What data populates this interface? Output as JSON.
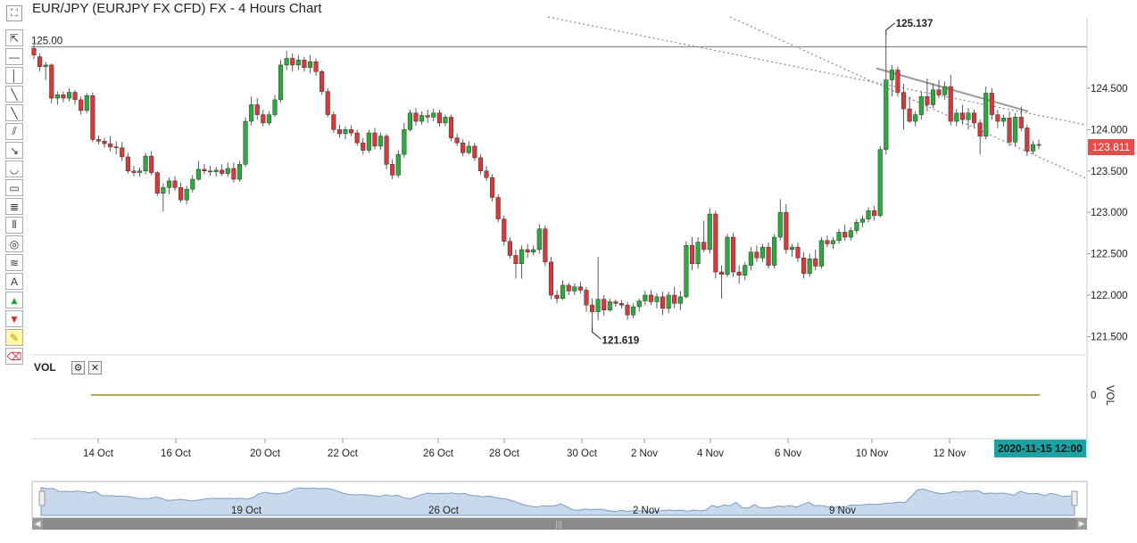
{
  "window": {
    "title": "EUR/JPY (EURJPY FX CFD) FX - 4 Hours Chart"
  },
  "toolbar": {
    "fullscreen_glyph": "⛶",
    "tools": [
      {
        "name": "cursor-tool",
        "glyph": "⇱"
      },
      {
        "name": "horizontal-line-tool",
        "glyph": "—"
      },
      {
        "name": "vertical-line-tool",
        "glyph": "│"
      },
      {
        "name": "trendline-tool",
        "glyph": "╲"
      },
      {
        "name": "ray-tool",
        "glyph": "╲"
      },
      {
        "name": "parallel-channel-tool",
        "glyph": "⫽"
      },
      {
        "name": "arrow-line-tool",
        "glyph": "↘"
      },
      {
        "name": "arc-tool",
        "glyph": "◡"
      },
      {
        "name": "rectangle-tool",
        "glyph": "▭"
      },
      {
        "name": "fibonacci-fan-tool",
        "glyph": "≣"
      },
      {
        "name": "fibonacci-time-tool",
        "glyph": "⦀"
      },
      {
        "name": "fibonacci-circles-tool",
        "glyph": "◎"
      },
      {
        "name": "fibonacci-arcs-tool",
        "glyph": "≋"
      },
      {
        "name": "text-annotation-tool",
        "glyph": "A"
      },
      {
        "name": "up-arrow-marker-tool",
        "glyph": "▲"
      },
      {
        "name": "down-arrow-marker-tool",
        "glyph": "▼"
      },
      {
        "name": "highlighter-tool",
        "glyph": "✎"
      },
      {
        "name": "eraser-tool",
        "glyph": "⌫"
      }
    ]
  },
  "indicator": {
    "label": "VOL",
    "gear_glyph": "⚙",
    "close_glyph": "✕",
    "axis_label": "VOL",
    "axis_zero": "0"
  },
  "price_axis": {
    "ticks": [
      "124.500",
      "124.000",
      "123.500",
      "123.000",
      "122.500",
      "122.000",
      "121.500"
    ],
    "last_price": "123.811",
    "reference_line_label": "125.00"
  },
  "annotations": {
    "high": "125.137",
    "low": "121.619"
  },
  "time_axis": {
    "labels": [
      "14 Oct",
      "16 Oct",
      "20 Oct",
      "22 Oct",
      "26 Oct",
      "28 Oct",
      "30 Oct",
      "2 Nov",
      "4 Nov",
      "6 Nov",
      "10 Nov",
      "12 Nov"
    ],
    "cursor_date": "2020-11-15 12:00"
  },
  "navigator": {
    "labels": [
      "19 Oct",
      "26 Oct",
      "2 Nov",
      "9 Nov"
    ]
  },
  "colors": {
    "up": "#2eaa3c",
    "down": "#d63a3a",
    "last_price_bg": "#e74c4c",
    "cursor_bg": "#1ba3a3",
    "nav_fill": "#c9d9ec",
    "nav_line": "#7d9cc4"
  },
  "chart_data": {
    "type": "candlestick",
    "title": "EUR/JPY (EURJPY FX CFD) FX - 4 Hours Chart",
    "timeframe": "4 Hours",
    "ylim": [
      121.3,
      125.35
    ],
    "reference_line": 125.0,
    "last_price": 123.811,
    "high_marker": 125.137,
    "low_marker": 121.619,
    "x_tick_labels": [
      "14 Oct",
      "16 Oct",
      "20 Oct",
      "22 Oct",
      "26 Oct",
      "28 Oct",
      "30 Oct",
      "2 Nov",
      "4 Nov",
      "6 Nov",
      "10 Nov",
      "12 Nov"
    ],
    "ohlc": [
      [
        124.98,
        125.02,
        124.85,
        124.9
      ],
      [
        124.88,
        124.92,
        124.7,
        124.76
      ],
      [
        124.76,
        124.82,
        124.6,
        124.78
      ],
      [
        124.78,
        124.8,
        124.32,
        124.38
      ],
      [
        124.38,
        124.46,
        124.3,
        124.42
      ],
      [
        124.42,
        124.46,
        124.33,
        124.38
      ],
      [
        124.38,
        124.5,
        124.34,
        124.45
      ],
      [
        124.45,
        124.48,
        124.3,
        124.36
      ],
      [
        124.36,
        124.4,
        124.18,
        124.23
      ],
      [
        124.23,
        124.44,
        124.2,
        124.41
      ],
      [
        124.41,
        124.45,
        123.85,
        123.88
      ],
      [
        123.88,
        123.93,
        123.82,
        123.86
      ],
      [
        123.86,
        123.9,
        123.78,
        123.83
      ],
      [
        123.83,
        123.92,
        123.74,
        123.79
      ],
      [
        123.79,
        123.86,
        123.7,
        123.78
      ],
      [
        123.78,
        123.85,
        123.62,
        123.67
      ],
      [
        123.67,
        123.72,
        123.47,
        123.5
      ],
      [
        123.5,
        123.56,
        123.44,
        123.48
      ],
      [
        123.48,
        123.54,
        123.43,
        123.5
      ],
      [
        123.5,
        123.72,
        123.46,
        123.68
      ],
      [
        123.68,
        123.74,
        123.45,
        123.48
      ],
      [
        123.48,
        123.5,
        123.2,
        123.23
      ],
      [
        123.23,
        123.35,
        123.01,
        123.3
      ],
      [
        123.3,
        123.42,
        123.22,
        123.38
      ],
      [
        123.38,
        123.44,
        123.26,
        123.3
      ],
      [
        123.3,
        123.36,
        123.12,
        123.15
      ],
      [
        123.15,
        123.32,
        123.1,
        123.28
      ],
      [
        123.28,
        123.45,
        123.24,
        123.4
      ],
      [
        123.4,
        123.62,
        123.38,
        123.52
      ],
      [
        123.52,
        123.58,
        123.46,
        123.5
      ],
      [
        123.5,
        123.56,
        123.44,
        123.49
      ],
      [
        123.49,
        123.55,
        123.43,
        123.51
      ],
      [
        123.51,
        123.58,
        123.44,
        123.47
      ],
      [
        123.47,
        123.6,
        123.43,
        123.53
      ],
      [
        123.53,
        123.6,
        123.36,
        123.4
      ],
      [
        123.4,
        123.62,
        123.37,
        123.58
      ],
      [
        123.58,
        124.15,
        123.55,
        124.1
      ],
      [
        124.1,
        124.4,
        124.05,
        124.3
      ],
      [
        124.3,
        124.38,
        124.12,
        124.18
      ],
      [
        124.18,
        124.24,
        124.04,
        124.08
      ],
      [
        124.08,
        124.22,
        124.05,
        124.18
      ],
      [
        124.18,
        124.42,
        124.15,
        124.36
      ],
      [
        124.36,
        124.84,
        124.33,
        124.78
      ],
      [
        124.78,
        124.95,
        124.72,
        124.86
      ],
      [
        124.86,
        124.92,
        124.7,
        124.78
      ],
      [
        124.78,
        124.9,
        124.72,
        124.84
      ],
      [
        124.84,
        124.88,
        124.7,
        124.75
      ],
      [
        124.75,
        124.9,
        124.68,
        124.82
      ],
      [
        124.82,
        124.86,
        124.65,
        124.7
      ],
      [
        124.7,
        124.72,
        124.42,
        124.46
      ],
      [
        124.46,
        124.5,
        124.15,
        124.18
      ],
      [
        124.18,
        124.22,
        123.96,
        124.0
      ],
      [
        124.0,
        124.06,
        123.9,
        123.95
      ],
      [
        123.95,
        124.04,
        123.88,
        124.0
      ],
      [
        124.0,
        124.05,
        123.92,
        123.96
      ],
      [
        123.96,
        124.0,
        123.8,
        123.84
      ],
      [
        123.84,
        123.9,
        123.7,
        123.75
      ],
      [
        123.75,
        124.0,
        123.72,
        123.96
      ],
      [
        123.96,
        124.02,
        123.76,
        123.8
      ],
      [
        123.8,
        123.96,
        123.76,
        123.92
      ],
      [
        123.92,
        123.95,
        123.52,
        123.58
      ],
      [
        123.58,
        123.64,
        123.4,
        123.45
      ],
      [
        123.45,
        123.75,
        123.42,
        123.7
      ],
      [
        123.7,
        124.08,
        123.66,
        124.0
      ],
      [
        124.0,
        124.24,
        123.98,
        124.2
      ],
      [
        124.2,
        124.26,
        124.05,
        124.1
      ],
      [
        124.1,
        124.22,
        124.06,
        124.17
      ],
      [
        124.17,
        124.24,
        124.08,
        124.15
      ],
      [
        124.15,
        124.25,
        124.1,
        124.2
      ],
      [
        124.2,
        124.24,
        124.04,
        124.08
      ],
      [
        124.08,
        124.18,
        124.04,
        124.15
      ],
      [
        124.15,
        124.18,
        123.86,
        123.9
      ],
      [
        123.9,
        123.95,
        123.8,
        123.84
      ],
      [
        123.84,
        123.88,
        123.68,
        123.72
      ],
      [
        123.72,
        123.86,
        123.7,
        123.8
      ],
      [
        123.8,
        123.84,
        123.62,
        123.66
      ],
      [
        123.66,
        123.7,
        123.46,
        123.5
      ],
      [
        123.5,
        123.56,
        123.38,
        123.42
      ],
      [
        123.42,
        123.46,
        123.13,
        123.18
      ],
      [
        123.18,
        123.22,
        122.88,
        122.92
      ],
      [
        122.92,
        122.96,
        122.6,
        122.65
      ],
      [
        122.65,
        122.7,
        122.44,
        122.48
      ],
      [
        122.48,
        122.55,
        122.2,
        122.38
      ],
      [
        122.38,
        122.6,
        122.2,
        122.55
      ],
      [
        122.55,
        122.62,
        122.45,
        122.52
      ],
      [
        122.52,
        122.6,
        122.48,
        122.55
      ],
      [
        122.55,
        122.86,
        122.5,
        122.8
      ],
      [
        122.8,
        122.84,
        122.35,
        122.4
      ],
      [
        122.4,
        122.46,
        121.95,
        122.0
      ],
      [
        122.0,
        122.06,
        121.9,
        121.96
      ],
      [
        121.96,
        122.18,
        121.94,
        122.12
      ],
      [
        122.12,
        122.15,
        122.0,
        122.05
      ],
      [
        122.05,
        122.14,
        122.0,
        122.1
      ],
      [
        122.1,
        122.16,
        122.02,
        122.06
      ],
      [
        122.06,
        122.1,
        121.8,
        121.88
      ],
      [
        121.88,
        121.96,
        121.619,
        121.8
      ],
      [
        121.8,
        122.46,
        121.7,
        121.95
      ],
      [
        121.95,
        122.0,
        121.75,
        121.82
      ],
      [
        121.82,
        121.96,
        121.8,
        121.92
      ],
      [
        121.92,
        121.95,
        121.86,
        121.9
      ],
      [
        121.9,
        121.94,
        121.84,
        121.88
      ],
      [
        121.88,
        121.92,
        121.7,
        121.76
      ],
      [
        121.76,
        121.9,
        121.72,
        121.86
      ],
      [
        121.86,
        121.96,
        121.8,
        121.93
      ],
      [
        121.93,
        122.05,
        121.88,
        122.0
      ],
      [
        122.0,
        122.06,
        121.88,
        121.92
      ],
      [
        121.92,
        122.02,
        121.84,
        121.98
      ],
      [
        121.98,
        122.04,
        121.76,
        121.84
      ],
      [
        121.84,
        122.04,
        121.78,
        122.0
      ],
      [
        122.0,
        122.1,
        121.84,
        121.9
      ],
      [
        121.9,
        122.05,
        121.82,
        121.98
      ],
      [
        121.98,
        122.65,
        121.96,
        122.6
      ],
      [
        122.6,
        122.7,
        122.3,
        122.38
      ],
      [
        122.38,
        122.7,
        122.32,
        122.64
      ],
      [
        122.64,
        122.9,
        122.52,
        122.55
      ],
      [
        122.55,
        123.05,
        122.5,
        122.98
      ],
      [
        122.98,
        123.02,
        122.2,
        122.28
      ],
      [
        122.28,
        122.36,
        121.96,
        122.25
      ],
      [
        122.25,
        122.74,
        122.22,
        122.7
      ],
      [
        122.7,
        122.75,
        122.22,
        122.28
      ],
      [
        122.28,
        122.36,
        122.14,
        122.24
      ],
      [
        122.24,
        122.4,
        122.18,
        122.36
      ],
      [
        122.36,
        122.58,
        122.3,
        122.52
      ],
      [
        122.52,
        122.6,
        122.4,
        122.45
      ],
      [
        122.45,
        122.62,
        122.4,
        122.58
      ],
      [
        122.58,
        122.64,
        122.32,
        122.36
      ],
      [
        122.36,
        122.74,
        122.32,
        122.7
      ],
      [
        122.7,
        123.16,
        122.66,
        123.0
      ],
      [
        123.0,
        123.1,
        122.5,
        122.55
      ],
      [
        122.55,
        122.62,
        122.46,
        122.58
      ],
      [
        122.58,
        122.64,
        122.4,
        122.45
      ],
      [
        122.45,
        122.52,
        122.2,
        122.26
      ],
      [
        122.26,
        122.5,
        122.22,
        122.44
      ],
      [
        122.44,
        122.55,
        122.3,
        122.35
      ],
      [
        122.35,
        122.7,
        122.32,
        122.66
      ],
      [
        122.66,
        122.72,
        122.58,
        122.62
      ],
      [
        122.62,
        122.7,
        122.56,
        122.66
      ],
      [
        122.66,
        122.8,
        122.62,
        122.76
      ],
      [
        122.76,
        122.85,
        122.66,
        122.7
      ],
      [
        122.7,
        122.82,
        122.66,
        122.78
      ],
      [
        122.78,
        122.92,
        122.74,
        122.88
      ],
      [
        122.88,
        122.96,
        122.82,
        122.92
      ],
      [
        122.92,
        123.06,
        122.88,
        123.02
      ],
      [
        123.02,
        123.08,
        122.9,
        122.96
      ],
      [
        122.96,
        123.8,
        122.94,
        123.76
      ],
      [
        123.76,
        125.137,
        123.7,
        124.6
      ],
      [
        124.6,
        124.78,
        124.4,
        124.72
      ],
      [
        124.72,
        124.76,
        124.4,
        124.45
      ],
      [
        124.45,
        124.55,
        124.0,
        124.25
      ],
      [
        124.25,
        124.4,
        124.08,
        124.1
      ],
      [
        124.1,
        124.22,
        124.04,
        124.18
      ],
      [
        124.18,
        124.46,
        124.12,
        124.4
      ],
      [
        124.4,
        124.62,
        124.22,
        124.3
      ],
      [
        124.3,
        124.56,
        124.26,
        124.48
      ],
      [
        124.48,
        124.6,
        124.38,
        124.42
      ],
      [
        124.42,
        124.58,
        124.36,
        124.52
      ],
      [
        124.52,
        124.66,
        124.05,
        124.1
      ],
      [
        124.1,
        124.25,
        124.04,
        124.2
      ],
      [
        124.2,
        124.3,
        124.06,
        124.12
      ],
      [
        124.12,
        124.26,
        124.0,
        124.2
      ],
      [
        124.2,
        124.24,
        124.02,
        124.08
      ],
      [
        124.08,
        124.12,
        123.7,
        123.92
      ],
      [
        123.92,
        124.52,
        123.88,
        124.44
      ],
      [
        124.44,
        124.5,
        124.12,
        124.18
      ],
      [
        124.18,
        124.24,
        124.02,
        124.1
      ],
      [
        124.1,
        124.18,
        124.04,
        124.14
      ],
      [
        124.14,
        124.22,
        123.8,
        123.85
      ],
      [
        123.85,
        124.2,
        123.8,
        124.15
      ],
      [
        124.15,
        124.28,
        123.98,
        124.02
      ],
      [
        124.02,
        124.06,
        123.68,
        123.74
      ],
      [
        123.74,
        123.86,
        123.7,
        123.82
      ],
      [
        123.82,
        123.88,
        123.76,
        123.811
      ]
    ],
    "volume": {
      "series": "VOL",
      "values_all_zero": true
    },
    "trendlines": [
      {
        "style": "dotted",
        "from": [
          "14 Oct",
          125.6
        ],
        "to": [
          "12 Nov",
          124.06
        ]
      },
      {
        "style": "dotted",
        "from": [
          "4 Nov",
          125.6
        ],
        "to": [
          "12 Nov",
          123.42
        ]
      },
      {
        "style": "solid",
        "from": [
          "10 Nov",
          124.74
        ],
        "to": [
          "12 Nov",
          124.22
        ]
      }
    ]
  }
}
